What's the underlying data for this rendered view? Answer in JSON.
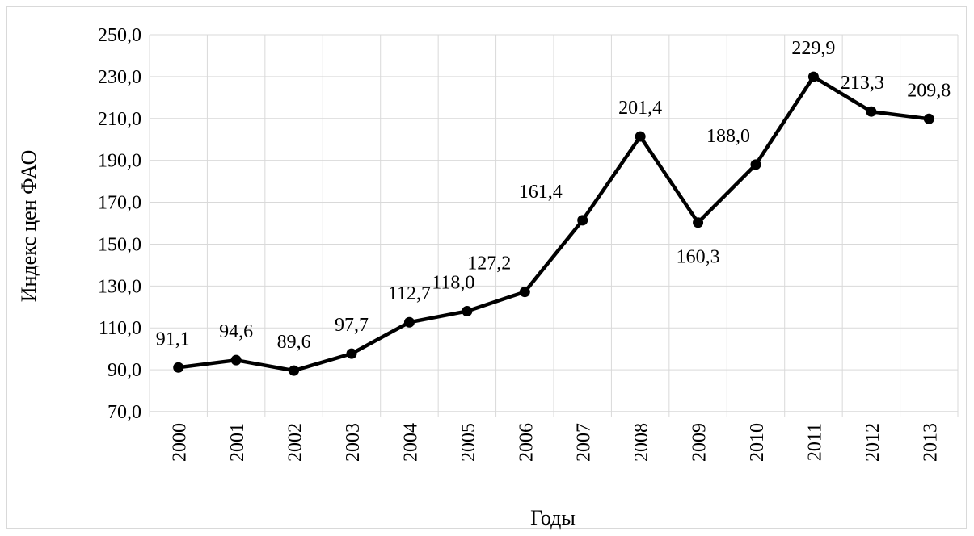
{
  "chart_data": {
    "type": "line",
    "title": "",
    "xlabel": "Годы",
    "ylabel": "Индекс цен ФАО",
    "categories": [
      "2000",
      "2001",
      "2002",
      "2003",
      "2004",
      "2005",
      "2006",
      "2007",
      "2008",
      "2009",
      "2010",
      "2011",
      "2012",
      "2013"
    ],
    "series": [
      {
        "values": [
          91.1,
          94.6,
          89.6,
          97.7,
          112.7,
          118.0,
          127.2,
          161.4,
          201.4,
          160.3,
          188.0,
          229.9,
          213.3,
          209.8
        ],
        "data_labels": [
          "91,1",
          "94,6",
          "89,6",
          "97,7",
          "112,7",
          "118,0",
          "127,2",
          "161,4",
          "201,4",
          "160,3",
          "188,0",
          "229,9",
          "213,3",
          "209,8"
        ],
        "color": "#000000",
        "marker": "circle"
      }
    ],
    "ylim": [
      70,
      250
    ],
    "yticks": [
      "70,0",
      "90,0",
      "110,0",
      "130,0",
      "150,0",
      "170,0",
      "190,0",
      "210,0",
      "230,0",
      "250,0"
    ],
    "grid": {
      "horizontal": true,
      "vertical": true,
      "color": "#d9d9d9"
    },
    "legend": "none"
  }
}
